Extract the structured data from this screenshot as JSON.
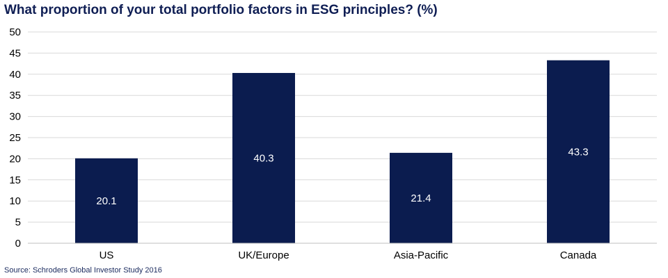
{
  "chart_data": {
    "type": "bar",
    "title": "What proportion of your total portfolio factors in ESG principles? (%)",
    "source": "Source: Schroders Global Investor Study 2016",
    "categories": [
      "US",
      "UK/Europe",
      "Asia-Pacific",
      "Canada"
    ],
    "values": [
      20.1,
      40.3,
      21.4,
      43.3
    ],
    "data_labels": [
      "20.1",
      "40.3",
      "21.4",
      "43.3"
    ],
    "xlabel": "",
    "ylabel": "",
    "ylim": [
      0,
      50
    ],
    "yticks": [
      0,
      5,
      10,
      15,
      20,
      25,
      30,
      35,
      40,
      45,
      50
    ],
    "ytick_labels": [
      "0",
      "5",
      "10",
      "15",
      "20",
      "25",
      "30",
      "35",
      "40",
      "45",
      "50"
    ],
    "grid": true,
    "legend": "none",
    "colors": {
      "bar": "#0b1c4f",
      "grid": "#d9d9d9",
      "value_label": "#ffffff",
      "title": "#0f1e54"
    }
  }
}
